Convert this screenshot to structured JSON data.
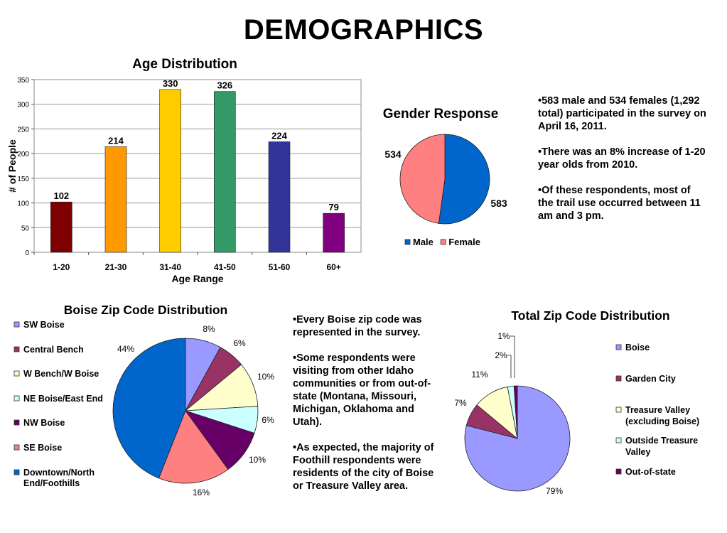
{
  "page": {
    "title": "DEMOGRAPHICS"
  },
  "chart_data": [
    {
      "id": "age",
      "type": "bar",
      "title": "Age Distribution",
      "xlabel": "Age Range",
      "ylabel": "# of People",
      "ylim": [
        0,
        350
      ],
      "yticks": [
        "0",
        "50",
        "100",
        "150",
        "200",
        "250",
        "300",
        "350"
      ],
      "grid": true,
      "categories": [
        "1-20",
        "21-30",
        "31-40",
        "41-50",
        "51-60",
        "60+"
      ],
      "values": [
        102,
        214,
        330,
        326,
        224,
        79
      ],
      "data_labels": [
        "102",
        "214",
        "330",
        "326",
        "224",
        "79"
      ],
      "colors": [
        "#7f0000",
        "#ff9900",
        "#ffcc00",
        "#339966",
        "#333399",
        "#800080"
      ]
    },
    {
      "id": "gender",
      "type": "pie",
      "title": "Gender Response",
      "legend": "bottom",
      "slices": [
        {
          "name": "Male",
          "value": 583,
          "label": "583",
          "color": "#0066cc"
        },
        {
          "name": "Female",
          "value": 534,
          "label": "534",
          "color": "#ff8080"
        }
      ]
    },
    {
      "id": "boise_zip",
      "type": "pie",
      "title": "Boise Zip Code Distribution",
      "legend": "left",
      "slices": [
        {
          "name": "SW Boise",
          "value": 8,
          "label": "8%",
          "color": "#9999ff"
        },
        {
          "name": "Central Bench",
          "value": 6,
          "label": "6%",
          "color": "#993366"
        },
        {
          "name": "W Bench/W Boise",
          "value": 10,
          "label": "10%",
          "color": "#ffffcc"
        },
        {
          "name": "NE Boise/East End",
          "value": 6,
          "label": "6%",
          "color": "#ccffff"
        },
        {
          "name": "NW Boise",
          "value": 10,
          "label": "10%",
          "color": "#660066"
        },
        {
          "name": "SE Boise",
          "value": 16,
          "label": "16%",
          "color": "#ff8080"
        },
        {
          "name": "Downtown/North End/Foothills",
          "value": 44,
          "label": "44%",
          "color": "#0066cc"
        }
      ]
    },
    {
      "id": "total_zip",
      "type": "pie",
      "title": "Total Zip Code Distribution",
      "legend": "right",
      "slices": [
        {
          "name": "Boise",
          "value": 79,
          "label": "79%",
          "color": "#9999ff"
        },
        {
          "name": "Garden City",
          "value": 7,
          "label": "7%",
          "color": "#993366"
        },
        {
          "name": "Treasure Valley (excluding Boise)",
          "value": 11,
          "label": "11%",
          "color": "#ffffcc"
        },
        {
          "name": "Outside Treasure Valley",
          "value": 2,
          "label": "2%",
          "color": "#ccffff"
        },
        {
          "name": "Out-of-state",
          "value": 1,
          "label": "1%",
          "color": "#660066"
        }
      ]
    }
  ],
  "notes_top": [
    "•583 male and 534 females (1,292 total) participated in the survey on April 16, 2011.",
    "•There was an 8% increase of 1-20 year olds from 2010.",
    "•Of these respondents, most of the  trail use occurred between 11 am and 3 pm."
  ],
  "notes_middle": [
    "•Every Boise zip code was represented in the survey.",
    "•Some respondents were visiting from other Idaho communities or from out-of-state (Montana, Missouri, Michigan, Oklahoma and Utah).",
    "•As expected, the majority of Foothill respondents were residents of the city of Boise or Treasure Valley area."
  ]
}
